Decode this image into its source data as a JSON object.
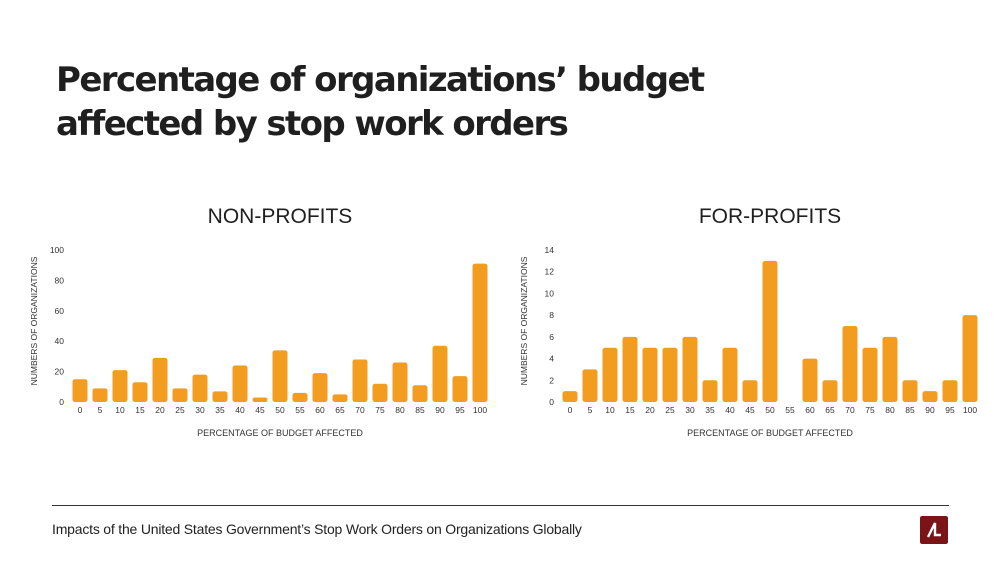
{
  "title": {
    "line1": "Percentage of organizations’ budget",
    "line2": "affected by stop work orders"
  },
  "footer": {
    "text": "Impacts of the United States Government’s Stop Work Orders on Organizations Globally"
  },
  "colors": {
    "bar": "#F29D1F",
    "logo": "#7A1416",
    "text": "#1F1F1F"
  },
  "logo_icon": "brand-logo-icon",
  "chart_data": [
    {
      "type": "bar",
      "title": "NON-PROFITS",
      "xlabel": "PERCENTAGE OF BUDGET AFFECTED",
      "ylabel": "NUMBERS OF ORGANIZATIONS",
      "ylim": [
        0,
        100
      ],
      "yticks": [
        0,
        20,
        40,
        60,
        80,
        100
      ],
      "categories": [
        "0",
        "5",
        "10",
        "15",
        "20",
        "25",
        "30",
        "35",
        "40",
        "45",
        "50",
        "55",
        "60",
        "65",
        "70",
        "75",
        "80",
        "85",
        "90",
        "95",
        "100"
      ],
      "values": [
        15,
        9,
        21,
        13,
        29,
        9,
        18,
        7,
        24,
        3,
        34,
        6,
        19,
        5,
        28,
        12,
        26,
        11,
        37,
        17,
        91
      ],
      "grid": false,
      "legend": "none"
    },
    {
      "type": "bar",
      "title": "FOR-PROFITS",
      "xlabel": "PERCENTAGE OF BUDGET AFFECTED",
      "ylabel": "NUMBERS OF ORGANIZATIONS",
      "ylim": [
        0,
        14
      ],
      "yticks": [
        0,
        2,
        4,
        6,
        8,
        10,
        12,
        14
      ],
      "categories": [
        "0",
        "5",
        "10",
        "15",
        "20",
        "25",
        "30",
        "35",
        "40",
        "45",
        "50",
        "55",
        "60",
        "65",
        "70",
        "75",
        "80",
        "85",
        "90",
        "95",
        "100"
      ],
      "values": [
        1,
        3,
        5,
        6,
        5,
        5,
        6,
        2,
        5,
        2,
        13,
        0,
        4,
        2,
        7,
        5,
        6,
        2,
        1,
        2,
        8
      ],
      "grid": false,
      "legend": "none"
    }
  ]
}
